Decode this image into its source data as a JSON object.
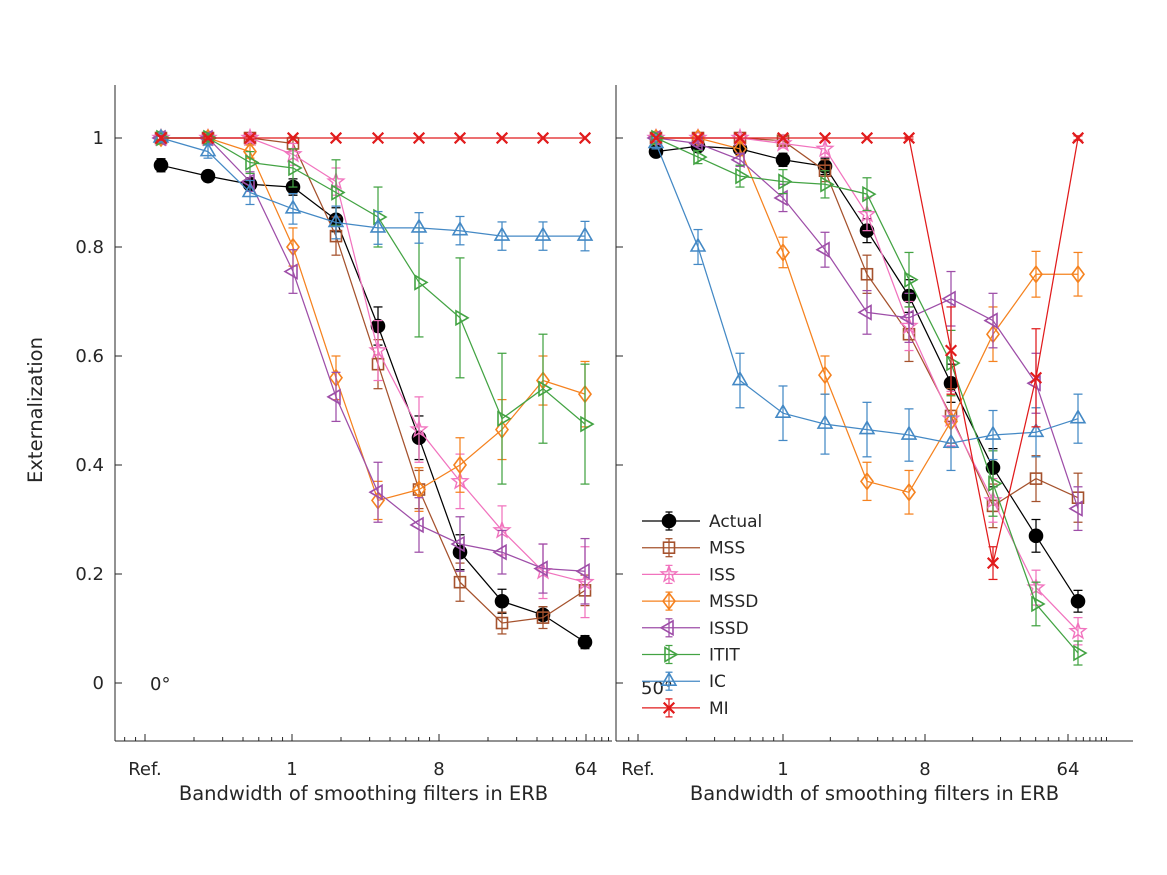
{
  "chart_data": {
    "type": "line",
    "title": "",
    "ylabel": "Externalization",
    "xlabel": "Bandwidth of smoothing filters in ERB",
    "ylim": [
      -0.106,
      1.097
    ],
    "y_ticks": [
      0,
      0.2,
      0.4,
      0.6,
      0.8,
      1
    ],
    "y_tick_labels": [
      "0",
      "0.2",
      "0.4",
      "0.6",
      "0.8",
      "1"
    ],
    "x_scale": "log",
    "x_tick_labels": [
      "Ref.",
      "1",
      "8",
      "64"
    ],
    "x_points_note": "11 conditions per panel: reference plus 10 log-spaced smoothing bandwidths up to 64 ERB",
    "grid": false,
    "legend_position": "lower-right-of-right-panel",
    "legend_entries": [
      "Actual",
      "MSS",
      "ISS",
      "MSSD",
      "ISSD",
      "ITIT",
      "IC",
      "MI"
    ],
    "series_style": [
      {
        "name": "Actual",
        "marker": "circle",
        "filled": true,
        "color": "#000000"
      },
      {
        "name": "MSS",
        "marker": "square",
        "filled": false,
        "color": "#A5522D"
      },
      {
        "name": "ISS",
        "marker": "star",
        "filled": false,
        "color": "#F173BE"
      },
      {
        "name": "MSSD",
        "marker": "diamond",
        "filled": false,
        "color": "#F5821F"
      },
      {
        "name": "ISSD",
        "marker": "triangle-left",
        "filled": false,
        "color": "#9E4EA8"
      },
      {
        "name": "ITIT",
        "marker": "triangle-right",
        "filled": false,
        "color": "#43A343"
      },
      {
        "name": "IC",
        "marker": "triangle-up",
        "filled": false,
        "color": "#4489C5"
      },
      {
        "name": "MI",
        "marker": "x",
        "filled": false,
        "color": "#E11B1C"
      }
    ],
    "panels": [
      {
        "label": "0°",
        "series": [
          {
            "name": "Actual",
            "values": [
              0.95,
              0.93,
              0.915,
              0.91,
              0.85,
              0.655,
              0.45,
              0.24,
              0.15,
              0.125,
              0.075
            ],
            "errors": [
              0.012,
              0.01,
              0.012,
              0.015,
              0.022,
              0.035,
              0.04,
              0.032,
              0.022,
              0.015,
              0.012
            ]
          },
          {
            "name": "MSS",
            "values": [
              1,
              1,
              1,
              0.99,
              0.82,
              0.585,
              0.355,
              0.185,
              0.11,
              0.12,
              0.17
            ],
            "errors": [
              0.003,
              0.003,
              0.006,
              0.012,
              0.035,
              0.045,
              0.035,
              0.035,
              0.02,
              0.02,
              0.028
            ]
          },
          {
            "name": "ISS",
            "values": [
              1,
              1,
              1,
              0.97,
              0.92,
              0.61,
              0.465,
              0.37,
              0.28,
              0.205,
              0.185
            ],
            "errors": [
              0.003,
              0.003,
              0.008,
              0.02,
              0.025,
              0.055,
              0.06,
              0.05,
              0.045,
              0.05,
              0.065
            ]
          },
          {
            "name": "MSSD",
            "values": [
              1,
              1,
              0.975,
              0.8,
              0.56,
              0.335,
              0.355,
              0.4,
              0.465,
              0.555,
              0.53
            ],
            "errors": [
              0.003,
              0.005,
              0.012,
              0.035,
              0.04,
              0.035,
              0.04,
              0.05,
              0.055,
              0.045,
              0.06
            ]
          },
          {
            "name": "ISSD",
            "values": [
              1,
              1,
              0.92,
              0.755,
              0.525,
              0.35,
              0.29,
              0.255,
              0.24,
              0.21,
              0.205
            ],
            "errors": [
              0.003,
              0.005,
              0.018,
              0.04,
              0.045,
              0.055,
              0.05,
              0.05,
              0.04,
              0.045,
              0.06
            ]
          },
          {
            "name": "ITIT",
            "values": [
              1,
              1,
              0.955,
              0.945,
              0.9,
              0.855,
              0.735,
              0.67,
              0.485,
              0.54,
              0.475
            ],
            "errors": [
              0.003,
              0.006,
              0.02,
              0.035,
              0.06,
              0.055,
              0.1,
              0.11,
              0.12,
              0.1,
              0.11
            ]
          },
          {
            "name": "IC",
            "values": [
              1,
              0.975,
              0.9,
              0.87,
              0.845,
              0.835,
              0.835,
              0.83,
              0.82,
              0.82,
              0.82
            ],
            "errors": [
              0.005,
              0.012,
              0.022,
              0.028,
              0.03,
              0.03,
              0.028,
              0.026,
              0.026,
              0.026,
              0.027
            ]
          },
          {
            "name": "MI",
            "values": [
              1,
              1,
              1,
              1,
              1,
              1,
              1,
              1,
              1,
              1,
              1
            ],
            "errors": [
              0.004,
              0.003,
              0.003,
              0,
              0,
              0,
              0,
              0,
              0,
              0,
              0
            ]
          }
        ]
      },
      {
        "label": "50°",
        "series": [
          {
            "name": "Actual",
            "values": [
              0.975,
              0.985,
              0.98,
              0.96,
              0.948,
              0.83,
              0.71,
              0.55,
              0.395,
              0.27,
              0.15
            ],
            "errors": [
              0.008,
              0.006,
              0.01,
              0.012,
              0.015,
              0.022,
              0.03,
              0.035,
              0.035,
              0.03,
              0.02
            ]
          },
          {
            "name": "MSS",
            "values": [
              1,
              1,
              1,
              0.995,
              0.94,
              0.75,
              0.64,
              0.49,
              0.325,
              0.375,
              0.34
            ],
            "errors": [
              0.003,
              0.003,
              0.005,
              0.008,
              0.02,
              0.035,
              0.05,
              0.05,
              0.04,
              0.042,
              0.045
            ]
          },
          {
            "name": "ISS",
            "values": [
              1,
              1,
              1,
              0.99,
              0.98,
              0.86,
              0.655,
              0.485,
              0.335,
              0.175,
              0.095
            ],
            "errors": [
              0.003,
              0.003,
              0.005,
              0.008,
              0.015,
              0.03,
              0.045,
              0.05,
              0.04,
              0.032,
              0.025
            ]
          },
          {
            "name": "MSSD",
            "values": [
              1,
              1,
              0.98,
              0.79,
              0.565,
              0.37,
              0.35,
              0.48,
              0.64,
              0.75,
              0.75
            ],
            "errors": [
              0.003,
              0.004,
              0.012,
              0.028,
              0.035,
              0.035,
              0.04,
              0.048,
              0.05,
              0.042,
              0.04
            ]
          },
          {
            "name": "ISSD",
            "values": [
              1,
              0.99,
              0.96,
              0.89,
              0.795,
              0.68,
              0.67,
              0.705,
              0.665,
              0.55,
              0.32
            ],
            "errors": [
              0.003,
              0.005,
              0.012,
              0.025,
              0.032,
              0.04,
              0.045,
              0.05,
              0.05,
              0.055,
              0.04
            ]
          },
          {
            "name": "ITIT",
            "values": [
              1,
              0.965,
              0.93,
              0.92,
              0.915,
              0.897,
              0.74,
              0.587,
              0.366,
              0.145,
              0.055
            ],
            "errors": [
              0.003,
              0.012,
              0.02,
              0.022,
              0.025,
              0.03,
              0.05,
              0.06,
              0.06,
              0.04,
              0.022
            ]
          },
          {
            "name": "IC",
            "values": [
              0.99,
              0.8,
              0.555,
              0.495,
              0.475,
              0.465,
              0.455,
              0.44,
              0.455,
              0.46,
              0.485
            ],
            "errors": [
              0.01,
              0.032,
              0.05,
              0.05,
              0.055,
              0.05,
              0.048,
              0.05,
              0.045,
              0.045,
              0.045
            ]
          },
          {
            "name": "MI",
            "values": [
              1,
              1,
              1,
              1,
              1,
              1,
              1,
              0.61,
              0.22,
              0.56,
              1
            ],
            "errors": [
              0,
              0,
              0,
              0,
              0,
              0,
              0.002,
              0.08,
              0.03,
              0.09,
              0.004
            ]
          }
        ]
      }
    ]
  }
}
